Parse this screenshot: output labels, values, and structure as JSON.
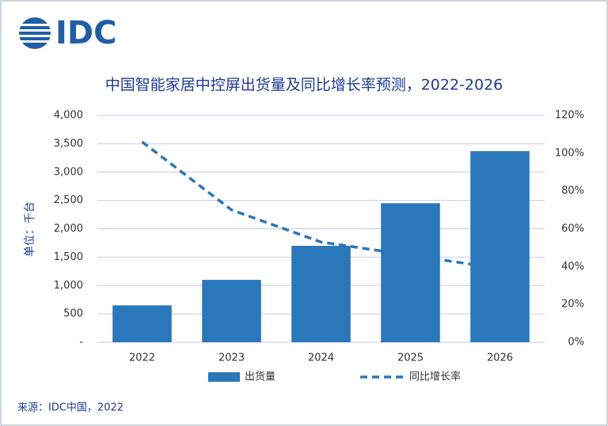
{
  "logo": "IDC",
  "source": "来源：IDC中国，2022",
  "chart_data": {
    "type": "bar-line",
    "title": "中国智能家居中控屏出货量及同比增长率预测，2022-2026",
    "y_label": "单位：千台",
    "categories": [
      "2022",
      "2023",
      "2024",
      "2025",
      "2026"
    ],
    "series": [
      {
        "name": "出货量",
        "type": "bar",
        "color": "#2a77bb",
        "values": [
          650,
          1100,
          1700,
          2450,
          3370
        ]
      },
      {
        "name": "同比增长率",
        "type": "line",
        "color": "#2a77bb",
        "axis": "y2",
        "dashed": true,
        "values": [
          106,
          70,
          53,
          46,
          39
        ]
      }
    ],
    "ylim": [
      0,
      4000
    ],
    "yticks": [
      {
        "value": 0,
        "label": "-"
      },
      500,
      {
        "value": 1000,
        "label": "1,000"
      },
      {
        "value": 1500,
        "label": "1,500"
      },
      {
        "value": 2000,
        "label": "2,000"
      },
      {
        "value": 2500,
        "label": "2,500"
      },
      {
        "value": 3000,
        "label": "3,000"
      },
      {
        "value": 3500,
        "label": "3,500"
      },
      {
        "value": 4000,
        "label": "4,000"
      }
    ],
    "y2lim": [
      0,
      120
    ],
    "y2ticks": [
      {
        "value": 0,
        "label": "0%"
      },
      {
        "value": 20,
        "label": "20%"
      },
      {
        "value": 40,
        "label": "40%"
      },
      {
        "value": 60,
        "label": "60%"
      },
      {
        "value": 80,
        "label": "80%"
      },
      {
        "value": 100,
        "label": "100%"
      },
      {
        "value": 120,
        "label": "120%"
      }
    ],
    "grid": true,
    "legend": "bottom"
  }
}
